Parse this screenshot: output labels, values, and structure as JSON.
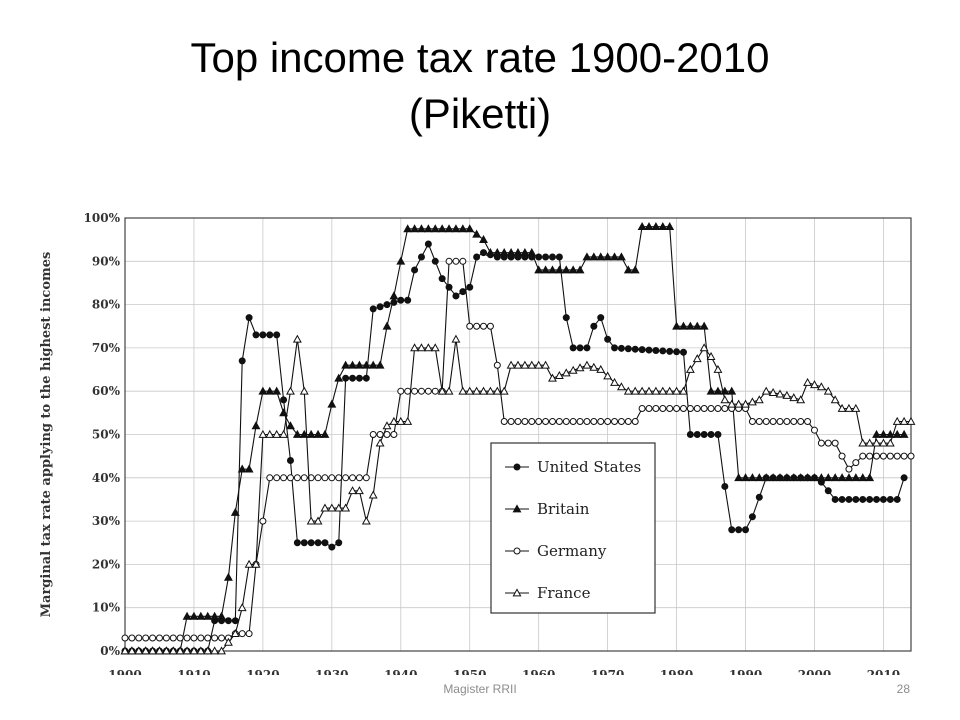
{
  "slide": {
    "title_line1": "Top income tax rate 1900-2010",
    "title_line2": "(Piketti)",
    "footer_text": "Magister RRII",
    "page_number": "28"
  },
  "chart_data": {
    "type": "line",
    "title": "",
    "xlabel": "",
    "ylabel": "Marginal tax rate applying to the highest incomes",
    "xlim": [
      1900,
      2014
    ],
    "ylim": [
      0,
      100
    ],
    "grid": true,
    "legend_position": "bottom-center",
    "x_ticks": [
      1900,
      1910,
      1920,
      1930,
      1940,
      1950,
      1960,
      1970,
      1980,
      1990,
      2000,
      2010
    ],
    "x_tick_labels": [
      "1900",
      "1910",
      "1920",
      "1930",
      "1940",
      "1950",
      "1960",
      "1970",
      "1980",
      "1990",
      "2000",
      "2010"
    ],
    "y_ticks": [
      0,
      10,
      20,
      30,
      40,
      50,
      60,
      70,
      80,
      90,
      100
    ],
    "y_tick_labels": [
      "0%",
      "10%",
      "20%",
      "30%",
      "40%",
      "50%",
      "60%",
      "70%",
      "80%",
      "90%",
      "100%"
    ],
    "series": [
      {
        "name": "United States",
        "marker": "circle-filled",
        "points": [
          [
            1900,
            0
          ],
          [
            1912,
            0
          ],
          [
            1913,
            7
          ],
          [
            1916,
            7
          ],
          [
            1917,
            67
          ],
          [
            1918,
            77
          ],
          [
            1919,
            73
          ],
          [
            1922,
            73
          ],
          [
            1923,
            58
          ],
          [
            1924,
            44
          ],
          [
            1925,
            25
          ],
          [
            1929,
            25
          ],
          [
            1930,
            24
          ],
          [
            1931,
            25
          ],
          [
            1932,
            63
          ],
          [
            1935,
            63
          ],
          [
            1936,
            79
          ],
          [
            1940,
            81
          ],
          [
            1941,
            81
          ],
          [
            1942,
            88
          ],
          [
            1944,
            94
          ],
          [
            1946,
            86
          ],
          [
            1948,
            82
          ],
          [
            1950,
            84
          ],
          [
            1951,
            91
          ],
          [
            1952,
            92
          ],
          [
            1954,
            91
          ],
          [
            1963,
            91
          ],
          [
            1964,
            77
          ],
          [
            1965,
            70
          ],
          [
            1967,
            70
          ],
          [
            1968,
            75
          ],
          [
            1969,
            77
          ],
          [
            1970,
            72
          ],
          [
            1971,
            70
          ],
          [
            1981,
            69
          ],
          [
            1982,
            50
          ],
          [
            1986,
            50
          ],
          [
            1987,
            38
          ],
          [
            1988,
            28
          ],
          [
            1990,
            28
          ],
          [
            1991,
            31
          ],
          [
            1993,
            40
          ],
          [
            2000,
            40
          ],
          [
            2001,
            39
          ],
          [
            2003,
            35
          ],
          [
            2012,
            35
          ],
          [
            2013,
            40
          ]
        ]
      },
      {
        "name": "Britain",
        "marker": "triangle-filled",
        "points": [
          [
            1900,
            0
          ],
          [
            1908,
            0
          ],
          [
            1909,
            8
          ],
          [
            1914,
            8
          ],
          [
            1915,
            17
          ],
          [
            1916,
            32
          ],
          [
            1917,
            42
          ],
          [
            1918,
            42
          ],
          [
            1919,
            52
          ],
          [
            1920,
            60
          ],
          [
            1922,
            60
          ],
          [
            1923,
            55
          ],
          [
            1924,
            52
          ],
          [
            1925,
            50
          ],
          [
            1929,
            50
          ],
          [
            1930,
            57
          ],
          [
            1931,
            63
          ],
          [
            1932,
            66
          ],
          [
            1935,
            66
          ],
          [
            1937,
            66
          ],
          [
            1938,
            75
          ],
          [
            1939,
            82
          ],
          [
            1940,
            90
          ],
          [
            1941,
            97.5
          ],
          [
            1950,
            97.5
          ],
          [
            1952,
            95
          ],
          [
            1953,
            92
          ],
          [
            1959,
            92
          ],
          [
            1960,
            88
          ],
          [
            1966,
            88
          ],
          [
            1967,
            91
          ],
          [
            1972,
            91
          ],
          [
            1973,
            88
          ],
          [
            1974,
            88
          ],
          [
            1975,
            98
          ],
          [
            1979,
            98
          ],
          [
            1980,
            75
          ],
          [
            1984,
            75
          ],
          [
            1985,
            60
          ],
          [
            1988,
            60
          ],
          [
            1989,
            40
          ],
          [
            2008,
            40
          ],
          [
            2009,
            50
          ],
          [
            2013,
            50
          ]
        ]
      },
      {
        "name": "Germany",
        "marker": "circle-open",
        "points": [
          [
            1900,
            3
          ],
          [
            1915,
            3
          ],
          [
            1916,
            4
          ],
          [
            1918,
            4
          ],
          [
            1919,
            20
          ],
          [
            1920,
            30
          ],
          [
            1921,
            40
          ],
          [
            1935,
            40
          ],
          [
            1936,
            50
          ],
          [
            1939,
            50
          ],
          [
            1940,
            60
          ],
          [
            1946,
            60
          ],
          [
            1947,
            90
          ],
          [
            1949,
            90
          ],
          [
            1950,
            75
          ],
          [
            1953,
            75
          ],
          [
            1954,
            66
          ],
          [
            1955,
            53
          ],
          [
            1974,
            53
          ],
          [
            1975,
            56
          ],
          [
            1990,
            56
          ],
          [
            1991,
            53
          ],
          [
            1999,
            53
          ],
          [
            2000,
            51
          ],
          [
            2001,
            48
          ],
          [
            2003,
            48
          ],
          [
            2004,
            45
          ],
          [
            2005,
            42
          ],
          [
            2007,
            45
          ],
          [
            2014,
            45
          ]
        ]
      },
      {
        "name": "France",
        "marker": "triangle-open",
        "points": [
          [
            1900,
            0
          ],
          [
            1914,
            0
          ],
          [
            1915,
            2
          ],
          [
            1916,
            4
          ],
          [
            1917,
            10
          ],
          [
            1918,
            20
          ],
          [
            1919,
            20
          ],
          [
            1920,
            50
          ],
          [
            1923,
            50
          ],
          [
            1924,
            60
          ],
          [
            1925,
            72
          ],
          [
            1926,
            60
          ],
          [
            1927,
            30
          ],
          [
            1928,
            30
          ],
          [
            1929,
            33
          ],
          [
            1932,
            33
          ],
          [
            1933,
            37
          ],
          [
            1934,
            37
          ],
          [
            1935,
            30
          ],
          [
            1936,
            36
          ],
          [
            1937,
            48
          ],
          [
            1938,
            52
          ],
          [
            1939,
            53
          ],
          [
            1941,
            53
          ],
          [
            1942,
            70
          ],
          [
            1945,
            70
          ],
          [
            1946,
            60
          ],
          [
            1947,
            60
          ],
          [
            1948,
            72
          ],
          [
            1949,
            60
          ],
          [
            1955,
            60
          ],
          [
            1956,
            66
          ],
          [
            1961,
            66
          ],
          [
            1962,
            63
          ],
          [
            1967,
            66
          ],
          [
            1969,
            65
          ],
          [
            1971,
            62
          ],
          [
            1973,
            60
          ],
          [
            1981,
            60
          ],
          [
            1982,
            65
          ],
          [
            1984,
            70
          ],
          [
            1985,
            68
          ],
          [
            1986,
            65
          ],
          [
            1987,
            58
          ],
          [
            1988,
            57
          ],
          [
            1990,
            57
          ],
          [
            1992,
            58
          ],
          [
            1993,
            60
          ],
          [
            1996,
            59
          ],
          [
            1998,
            58
          ],
          [
            1999,
            62
          ],
          [
            2001,
            61
          ],
          [
            2002,
            60
          ],
          [
            2003,
            58
          ],
          [
            2004,
            56
          ],
          [
            2006,
            56
          ],
          [
            2007,
            48
          ],
          [
            2011,
            48
          ],
          [
            2012,
            53
          ],
          [
            2014,
            53
          ]
        ]
      }
    ]
  }
}
